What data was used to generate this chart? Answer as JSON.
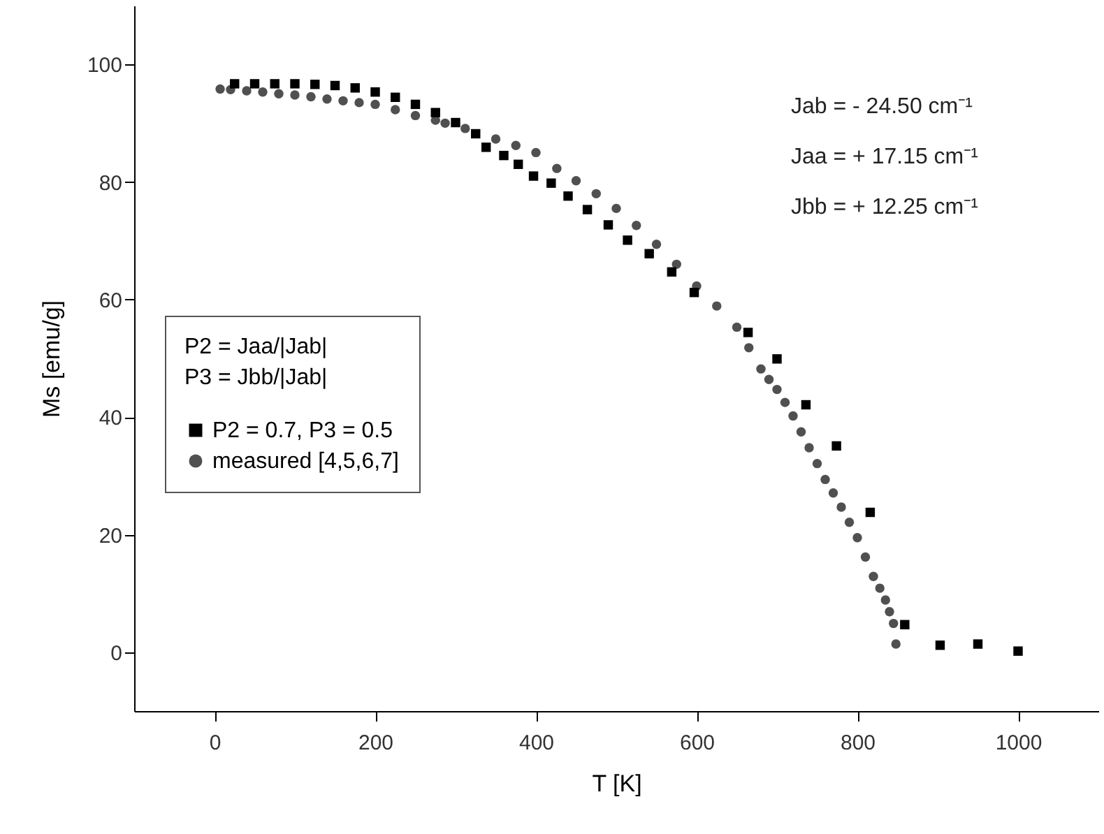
{
  "chart_data": {
    "type": "scatter",
    "xlabel": "T [K]",
    "ylabel": "Ms [emu/g]",
    "xlim": [
      -100,
      1100
    ],
    "ylim": [
      -10,
      110
    ],
    "xticks": [
      0,
      200,
      400,
      600,
      800,
      1000
    ],
    "yticks": [
      0,
      20,
      40,
      60,
      80,
      100
    ],
    "grid": false,
    "legend": "left",
    "legend_title": "P2 = Jaa/|Jab|\nP3 = Jbb/|Jab|",
    "annotations": [
      "Jab = - 24.50 cm⁻¹",
      "Jaa = + 17.15 cm⁻¹",
      "Jbb = + 12.25 cm⁻¹"
    ],
    "series": [
      {
        "name": "P2 = 0.7, P3 = 0.5",
        "color": "#000000",
        "marker": "square",
        "x": [
          25,
          50,
          75,
          100,
          125,
          150,
          175,
          200,
          225,
          250,
          275,
          300,
          325,
          338,
          360,
          378,
          397,
          419,
          440,
          464,
          490,
          514,
          541,
          569,
          597,
          664,
          700,
          736,
          774,
          816,
          859,
          903,
          950,
          1000
        ],
        "values": [
          96.7,
          96.7,
          96.7,
          96.7,
          96.6,
          96.4,
          96.0,
          95.3,
          94.4,
          93.2,
          91.8,
          90.1,
          88.2,
          85.9,
          84.5,
          83.0,
          81.0,
          79.8,
          77.6,
          75.3,
          72.7,
          70.1,
          67.8,
          64.7,
          61.2,
          54.4,
          49.9,
          42.1,
          35.1,
          23.8,
          4.7,
          1.2,
          1.4,
          0.2
        ]
      },
      {
        "name": "measured [4,5,6,7]",
        "color": "#505050",
        "marker": "circle",
        "x": [
          7,
          20,
          40,
          60,
          80,
          100,
          120,
          140,
          160,
          180,
          200,
          225,
          250,
          275,
          287,
          312,
          350,
          375,
          400,
          426,
          450,
          475,
          500,
          525,
          550,
          575,
          600,
          625,
          650,
          665,
          680,
          690,
          700,
          710,
          720,
          730,
          740,
          750,
          760,
          770,
          780,
          790,
          800,
          810,
          820,
          828,
          835,
          840,
          845,
          848
        ],
        "values": [
          95.8,
          95.7,
          95.5,
          95.3,
          95.0,
          94.8,
          94.5,
          94.1,
          93.8,
          93.5,
          93.2,
          92.3,
          91.3,
          90.5,
          90.0,
          89.1,
          87.3,
          86.2,
          85.0,
          82.3,
          80.2,
          78.0,
          75.5,
          72.6,
          69.4,
          66.0,
          62.3,
          58.9,
          55.3,
          51.8,
          48.2,
          46.4,
          44.7,
          42.5,
          40.2,
          37.5,
          34.8,
          32.1,
          29.4,
          27.1,
          24.7,
          22.1,
          19.5,
          16.2,
          12.9,
          10.9,
          8.9,
          6.9,
          4.9,
          1.4
        ]
      }
    ]
  }
}
